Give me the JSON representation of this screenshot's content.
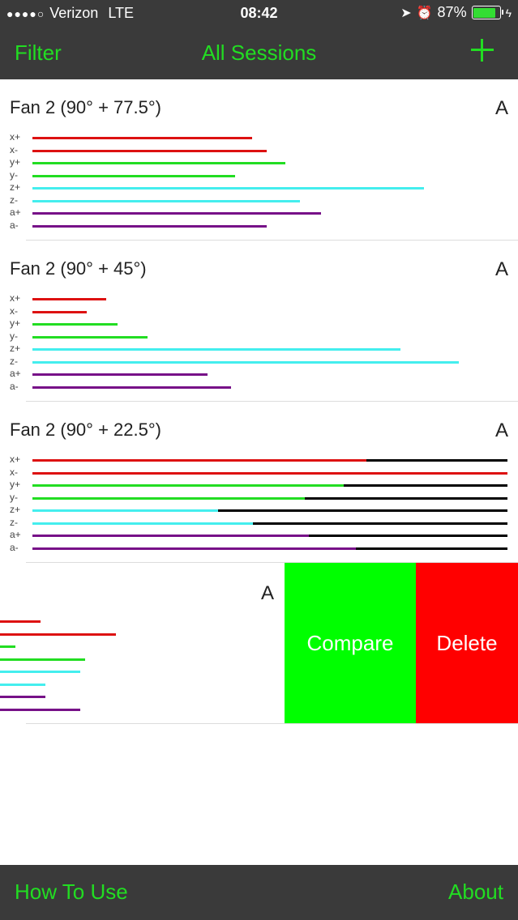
{
  "status": {
    "carrier": "Verizon",
    "network": "LTE",
    "time": "08:42",
    "battery": "87%",
    "battery_level": 0.87
  },
  "nav": {
    "left": "Filter",
    "title": "All Sessions"
  },
  "toolbar": {
    "left": "How To Use",
    "right": "About"
  },
  "colors": {
    "x": "#dd1111",
    "y": "#22dd22",
    "z": "#44eeee",
    "a": "#771188",
    "track": "#000000"
  },
  "axis_labels": [
    "x+",
    "x-",
    "y+",
    "y-",
    "z+",
    "z-",
    "a+",
    "a-"
  ],
  "sessions": [
    {
      "name": "Fan 2 (90° + 77.5°)",
      "badge": "A",
      "values": [
        0.463,
        0.494,
        0.532,
        0.426,
        0.824,
        0.563,
        0.608,
        0.494
      ]
    },
    {
      "name": "Fan 2 (90° + 45°)",
      "badge": "A",
      "values": [
        0.156,
        0.114,
        0.179,
        0.243,
        0.775,
        0.898,
        0.369,
        0.418
      ]
    },
    {
      "name": "Fan 2 (90° + 22.5°)",
      "badge": "A",
      "track": true,
      "values": [
        0.703,
        1.0,
        0.655,
        0.573,
        0.391,
        0.464,
        0.582,
        0.681
      ]
    },
    {
      "name": "",
      "badge": "A",
      "swiped": true,
      "values": [
        0.08,
        0.23,
        0.03,
        0.17,
        0.16,
        0.09,
        0.09,
        0.16
      ]
    }
  ],
  "actions": {
    "compare": "Compare",
    "delete": "Delete"
  }
}
